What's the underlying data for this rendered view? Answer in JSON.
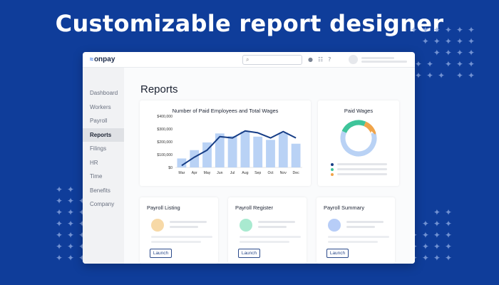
{
  "headline": "Customizable report designer",
  "app": {
    "logo_text": "onpay",
    "logo_mark": "≈",
    "search_icon": "search-icon",
    "topbar_icons": [
      "bell-icon",
      "grid-icon",
      "help-icon"
    ],
    "help_glyph": "?",
    "bell_glyph": "♪",
    "grid_glyph": "☷"
  },
  "sidebar": {
    "items": [
      {
        "label": "Dashboard"
      },
      {
        "label": "Workers"
      },
      {
        "label": "Payroll"
      },
      {
        "label": "Reports"
      },
      {
        "label": "Filings"
      },
      {
        "label": "HR"
      },
      {
        "label": "Time"
      },
      {
        "label": "Benefits"
      },
      {
        "label": "Company"
      }
    ],
    "active": "Reports"
  },
  "page": {
    "title": "Reports"
  },
  "chart_data": [
    {
      "type": "bar",
      "title": "Number of Paid Employees and Total Wages",
      "categories": [
        "Mar",
        "Apr",
        "May",
        "Jun",
        "Jul",
        "Aug",
        "Sep",
        "Oct",
        "Nov",
        "Dec"
      ],
      "y_ticks": [
        "$400,000",
        "$300,000",
        "$200,000",
        "$100,000",
        "$0"
      ],
      "ylim": [
        0,
        400000
      ],
      "series": [
        {
          "type": "bar",
          "values": [
            70000,
            135000,
            195000,
            265000,
            245000,
            280000,
            240000,
            215000,
            270000,
            185000
          ],
          "color": "#b9d2f5"
        },
        {
          "type": "line",
          "values": [
            15000,
            80000,
            135000,
            240000,
            230000,
            285000,
            270000,
            230000,
            280000,
            230000
          ],
          "color": "#163d86"
        }
      ],
      "grid": false,
      "legend": "none"
    },
    {
      "type": "pie",
      "title": "Paid Wages",
      "donut": true,
      "values": [
        62,
        25,
        13
      ],
      "colors": [
        "#b9d2f5",
        "#3ec49a",
        "#f0a44a"
      ]
    }
  ],
  "wages_legend": [
    {
      "color": "#163d86"
    },
    {
      "color": "#3ec49a"
    },
    {
      "color": "#f0a44a"
    }
  ],
  "report_cards": [
    {
      "title": "Payroll Listing",
      "launch_label": "Launch",
      "circle_color": "#f7d9a7"
    },
    {
      "title": "Payroll Register",
      "launch_label": "Launch",
      "circle_color": "#a9ead0"
    },
    {
      "title": "Payroll Summary",
      "launch_label": "Launch",
      "circle_color": "#b7cdf7"
    }
  ]
}
